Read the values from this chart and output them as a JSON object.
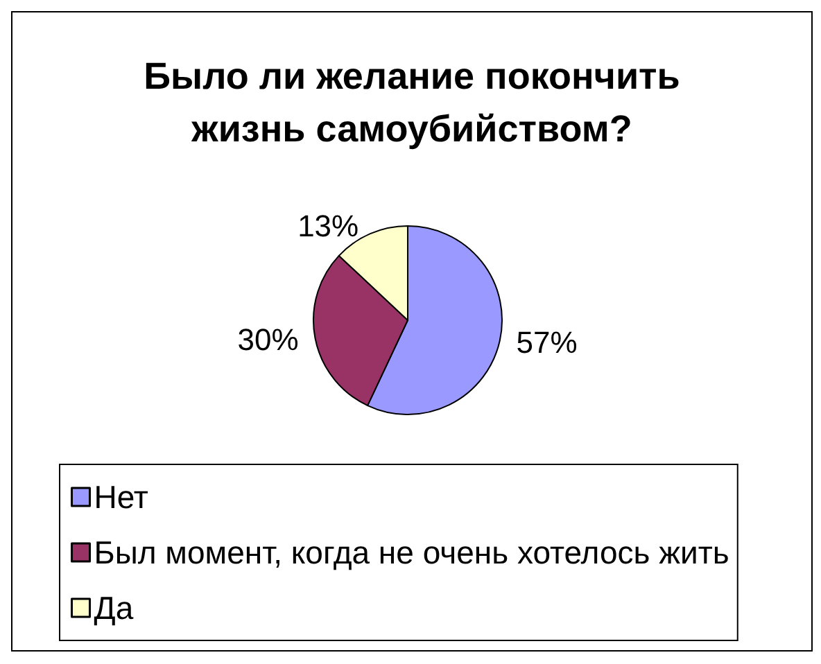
{
  "chart_data": {
    "type": "pie",
    "title": "Было ли желание покончить жизнь самоубийством?",
    "categories": [
      "Нет",
      "Был момент, когда не очень хотелось жить",
      "Да"
    ],
    "values": [
      57,
      30,
      13
    ],
    "colors": [
      "#9999ff",
      "#993366",
      "#ffffcc"
    ],
    "value_labels": [
      "57%",
      "30%",
      "13%"
    ],
    "legend": "bottom"
  }
}
